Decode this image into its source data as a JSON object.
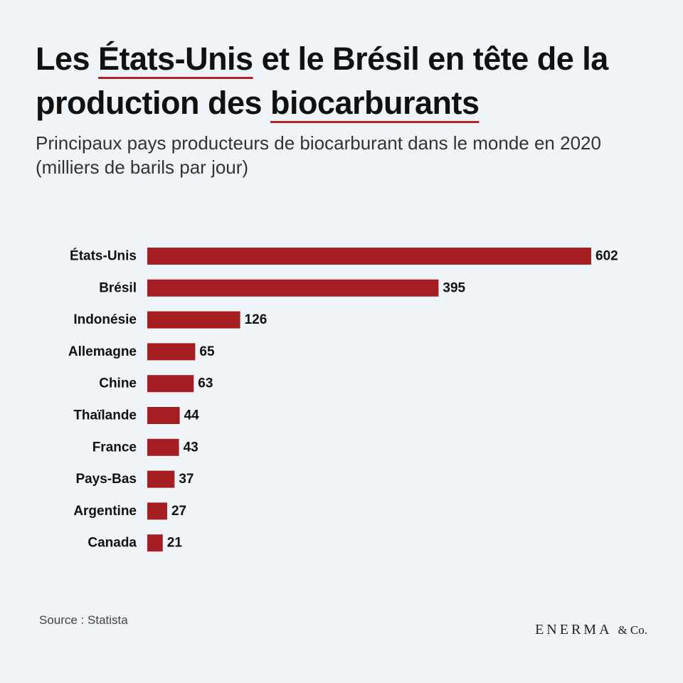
{
  "header": {
    "title_part1": "Les ",
    "title_hl1": "États-Unis",
    "title_part2": " et le Brésil en tête de la production des ",
    "title_hl2": "biocarburants",
    "subtitle": "Principaux pays producteurs de biocarburant dans le monde en 2020 (milliers de barils par jour)"
  },
  "footer": {
    "source": "Source : Statista",
    "brand_main": "ENERMA",
    "brand_suffix": "& Co."
  },
  "colors": {
    "bar": "#a41e22",
    "accent_underline": "#b0262b",
    "background": "#eef4f8"
  },
  "chart_data": {
    "type": "bar",
    "orientation": "horizontal",
    "title": "Les États-Unis et le Brésil en tête de la production des biocarburants",
    "subtitle": "Principaux pays producteurs de biocarburant dans le monde en 2020 (milliers de barils par jour)",
    "categories": [
      "États-Unis",
      "Brésil",
      "Indonésie",
      "Allemagne",
      "Chine",
      "Thaïlande",
      "France",
      "Pays-Bas",
      "Argentine",
      "Canada"
    ],
    "values": [
      602,
      395,
      126,
      65,
      63,
      44,
      43,
      37,
      27,
      21
    ],
    "xlabel": "",
    "ylabel": "",
    "xlim": [
      0,
      602
    ],
    "grid": false,
    "data_labels": true,
    "legend": "none"
  }
}
